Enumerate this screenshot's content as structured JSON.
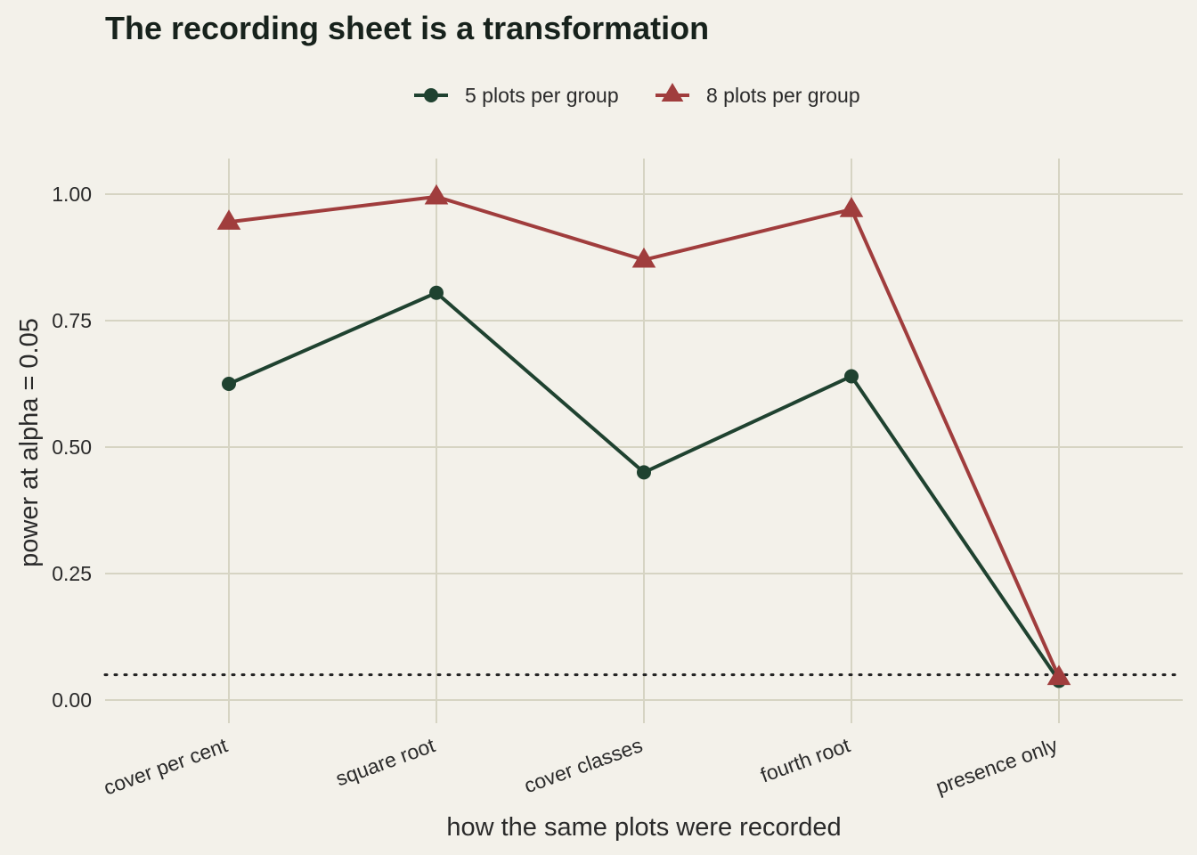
{
  "chart_data": {
    "type": "line",
    "title": "The recording sheet is a transformation",
    "xlabel": "how the same plots were recorded",
    "ylabel": "power at alpha = 0.05",
    "categories": [
      "cover per cent",
      "square root",
      "cover classes",
      "fourth root",
      "presence only"
    ],
    "ylim": [
      0,
      1.07
    ],
    "yticks": [
      0,
      0.25,
      0.5,
      0.75,
      1.0
    ],
    "ytick_labels": [
      "0.00",
      "0.25",
      "0.50",
      "0.75",
      "1.00"
    ],
    "grid": true,
    "legend_position": "top",
    "reference_line": {
      "y": 0.05,
      "style": "dotted",
      "color": "#222222"
    },
    "series": [
      {
        "name": "5 plots per group",
        "color": "#1f4230",
        "marker": "circle",
        "values": [
          0.625,
          0.805,
          0.45,
          0.64,
          0.038
        ]
      },
      {
        "name": "8 plots per group",
        "color": "#a03d3d",
        "marker": "triangle",
        "values": [
          0.945,
          0.995,
          0.87,
          0.97,
          0.045
        ]
      }
    ]
  }
}
